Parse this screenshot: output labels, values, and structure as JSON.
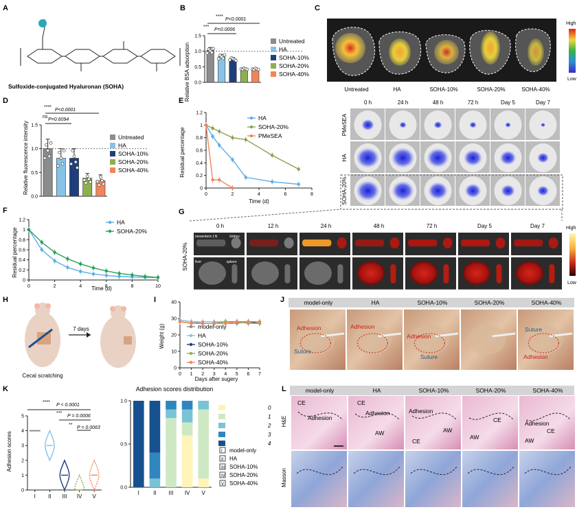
{
  "panels": {
    "A": {
      "letter": "A",
      "caption": "Sulfoxide-conjugated Hyaluronan (SOHA)",
      "colors": {
        "sulfoxide": "#2aa7b8",
        "bond": "#222222"
      }
    },
    "B": {
      "letter": "B",
      "ylabel": "Relative BSA adsorption",
      "sig1_stars": "****",
      "sig1_p": "P<0.0001",
      "sig2_stars": "***",
      "sig2_p": "P=0.0006"
    },
    "C": {
      "letter": "C",
      "scale_high": "High",
      "scale_low": "Low",
      "organs": [
        "Untreated",
        "HA",
        "SOHA-10%",
        "SOHA-20%",
        "SOHA-40%"
      ]
    },
    "D": {
      "letter": "D",
      "ylabel": "Relative fluorescence intensity",
      "sig1_stars": "****",
      "sig1_p": "P<0.0001",
      "sig2_stars": "ns",
      "sig2_p": "P=0.6094"
    },
    "E": {
      "letter": "E",
      "ylabel": "Residual percentage",
      "xlabel": "Time (d)"
    },
    "F": {
      "letter": "F",
      "ylabel": "Residual percentage",
      "xlabel": "Time (d)"
    },
    "mice": {
      "timepoints": [
        "0 h",
        "24 h",
        "48 h",
        "72 h",
        "Day 5",
        "Day 7"
      ],
      "rows": [
        "PMeSEA",
        "HA",
        "SOHA-20%"
      ]
    },
    "G": {
      "letter": "G",
      "timepoints": [
        "0 h",
        "12 h",
        "24 h",
        "48 h",
        "72 h",
        "Day 5",
        "Day 7"
      ],
      "row_label": "SOHA-20%",
      "organ_labels": [
        "mesenteric LN",
        "kidney",
        "liver",
        "spleen"
      ],
      "scale_high": "High",
      "scale_low": "Low"
    },
    "H": {
      "letter": "H",
      "step": "7 days",
      "caption": "Cecal scratching"
    },
    "I": {
      "letter": "I",
      "ylabel": "Weight (g)",
      "xlabel": "Days after sugery"
    },
    "J": {
      "letter": "J",
      "groups": [
        "model-only",
        "HA",
        "SOHA-10%",
        "SOHA-20%",
        "SOHA-40%"
      ],
      "tags": {
        "adhesion": "Adhesion",
        "suture": "Suture"
      }
    },
    "K": {
      "letter": "K",
      "ylabel": "Adhesion scores",
      "sig1_stars": "****",
      "sig1_p": "P < 0.0001",
      "sig2_stars": "***",
      "sig2_p": "P = 0.0006",
      "sig3_stars": "**",
      "sig3_p": "P = 0.0063",
      "dist_title": "Adhesion scores distribution",
      "roman": [
        "I",
        "II",
        "III",
        "IV",
        "V"
      ],
      "score_legend": [
        "0",
        "1",
        "2",
        "3",
        "4"
      ],
      "group_legend": [
        {
          "sym": "I",
          "name": "model-only"
        },
        {
          "sym": "II",
          "name": "HA"
        },
        {
          "sym": "III",
          "name": "SOHA-10%"
        },
        {
          "sym": "IV",
          "name": "SOHA-20%"
        },
        {
          "sym": "V",
          "name": "SOHA-40%"
        }
      ]
    },
    "L": {
      "letter": "L",
      "groups": [
        "model-only",
        "HA",
        "SOHA-10%",
        "SOHA-20%",
        "SOHA-40%"
      ],
      "rows": [
        "H&E",
        "Masson"
      ],
      "tags": {
        "ce": "CE",
        "aw": "AW",
        "adhesion": "Adhesion"
      }
    }
  },
  "chart_data": [
    {
      "id": "B",
      "type": "bar",
      "categories": [
        "Untreated",
        "HA",
        "SOHA-10%",
        "SOHA-20%",
        "SOHA-40%"
      ],
      "values": [
        1.03,
        0.82,
        0.75,
        0.44,
        0.43
      ],
      "errors": [
        0.09,
        0.08,
        0.05,
        0.03,
        0.03
      ],
      "colors": [
        "#8c8c8c",
        "#86c3e6",
        "#1e3f7a",
        "#8db04e",
        "#f2845b"
      ],
      "ylim": [
        0,
        1.5
      ],
      "yticks": [
        0,
        0.5,
        1.0,
        1.5
      ],
      "ylabel": "Relative BSA adsorption",
      "legend": [
        "Untreated",
        "HA",
        "SOHA-10%",
        "SOHA-20%",
        "SOHA-40%"
      ]
    },
    {
      "id": "D",
      "type": "bar",
      "categories": [
        "Untreated",
        "HA",
        "SOHA-10%",
        "SOHA-20%",
        "SOHA-40%"
      ],
      "values": [
        1.0,
        0.8,
        0.8,
        0.38,
        0.33
      ],
      "errors": [
        0.2,
        0.2,
        0.2,
        0.1,
        0.12
      ],
      "colors": [
        "#8c8c8c",
        "#86c3e6",
        "#1e3f7a",
        "#8db04e",
        "#f2845b"
      ],
      "ylim": [
        0,
        1.5
      ],
      "yticks": [
        0,
        0.5,
        1.0,
        1.5
      ],
      "ylabel": "Relative fluorescence intensity",
      "legend": [
        "Untreated",
        "HA",
        "SOHA-10%",
        "SOHA-20%",
        "SOHA-40%"
      ]
    },
    {
      "id": "E",
      "type": "line",
      "x": [
        0,
        0.5,
        1,
        2,
        3,
        5,
        7
      ],
      "series": [
        {
          "name": "HA",
          "color": "#5aaee8",
          "values": [
            1.0,
            0.82,
            0.68,
            0.45,
            0.17,
            0.1,
            0.06
          ]
        },
        {
          "name": "SOHA-20%",
          "color": "#8aa153",
          "values": [
            1.0,
            0.95,
            0.9,
            0.8,
            0.77,
            0.52,
            0.3
          ]
        },
        {
          "name": "PMeSEA",
          "color": "#f2845b",
          "x": [
            0,
            0.5,
            1,
            2
          ],
          "values": [
            1.0,
            0.13,
            0.13,
            0.0
          ]
        }
      ],
      "xlim": [
        0,
        8
      ],
      "ylim": [
        0,
        1.2
      ],
      "xticks": [
        0,
        2,
        4,
        6,
        8
      ],
      "yticks": [
        0,
        0.2,
        0.4,
        0.6,
        0.8,
        1.0,
        1.2
      ],
      "xlabel": "Time (d)",
      "ylabel": "Residual percentage"
    },
    {
      "id": "F",
      "type": "line",
      "x": [
        0,
        1,
        2,
        3,
        4,
        5,
        6,
        7,
        8,
        9,
        10
      ],
      "series": [
        {
          "name": "HA",
          "color": "#5aaee8",
          "values": [
            1.0,
            0.6,
            0.38,
            0.25,
            0.17,
            0.12,
            0.09,
            0.07,
            0.06,
            0.05,
            0.05
          ]
        },
        {
          "name": "SOHA-20%",
          "color": "#27a05a",
          "values": [
            1.0,
            0.75,
            0.55,
            0.42,
            0.32,
            0.24,
            0.18,
            0.13,
            0.1,
            0.07,
            0.05
          ]
        }
      ],
      "xlim": [
        0,
        10
      ],
      "ylim": [
        0,
        1.2
      ],
      "xticks": [
        0,
        2,
        4,
        6,
        8,
        10
      ],
      "yticks": [
        0,
        0.2,
        0.4,
        0.6,
        0.8,
        1.0,
        1.2
      ],
      "xlabel": "Time (d)",
      "ylabel": "Residual percentage"
    },
    {
      "id": "I",
      "type": "line",
      "x": [
        0,
        1,
        2,
        3,
        4,
        5,
        6,
        7
      ],
      "series": [
        {
          "name": "model-only",
          "color": "#8c8c8c",
          "values": [
            29,
            28,
            27,
            27,
            27,
            27,
            28,
            28
          ]
        },
        {
          "name": "HA",
          "color": "#86c3e6",
          "values": [
            29,
            28,
            28,
            28,
            28,
            28,
            28,
            28
          ]
        },
        {
          "name": "SOHA-10%",
          "color": "#1e3f7a",
          "values": [
            28,
            27,
            27,
            27,
            28,
            28,
            28,
            27
          ]
        },
        {
          "name": "SOHA-20%",
          "color": "#8db04e",
          "values": [
            28,
            27,
            27,
            27,
            28,
            28,
            27,
            27
          ]
        },
        {
          "name": "SOHA-40%",
          "color": "#f2845b",
          "values": [
            28,
            27,
            27,
            27,
            27,
            28,
            28,
            28
          ]
        }
      ],
      "xlim": [
        0,
        7
      ],
      "ylim": [
        0,
        40
      ],
      "xticks": [
        0,
        1,
        2,
        3,
        4,
        5,
        6,
        7
      ],
      "yticks": [
        0,
        10,
        20,
        30,
        40
      ],
      "xlabel": "Days after sugery",
      "ylabel": "Weight (g)"
    },
    {
      "id": "K-violin",
      "type": "violin",
      "categories": [
        "I",
        "II",
        "III",
        "IV",
        "V"
      ],
      "medians": [
        4,
        3,
        1,
        0,
        1
      ],
      "colors": [
        "#8c8c8c",
        "#86c3e6",
        "#1e3f7a",
        "#8db04e",
        "#f2845b"
      ],
      "ylim": [
        0,
        5
      ],
      "yticks": [
        0,
        1,
        2,
        3,
        4,
        5
      ],
      "ylabel": "Adhesion scores"
    },
    {
      "id": "K-stack",
      "type": "bar",
      "stacked": true,
      "categories": [
        "I",
        "II",
        "III",
        "IV",
        "V"
      ],
      "series": [
        {
          "name": "0",
          "color": "#fff3b8",
          "values": [
            0,
            0,
            0,
            0.6,
            0.1
          ]
        },
        {
          "name": "1",
          "color": "#cfe8c4",
          "values": [
            0,
            0,
            0.8,
            0.15,
            0.8
          ]
        },
        {
          "name": "2",
          "color": "#79c3d6",
          "values": [
            0,
            0.1,
            0.1,
            0.15,
            0.1
          ]
        },
        {
          "name": "3",
          "color": "#2f86be",
          "values": [
            0,
            0.3,
            0.1,
            0.1,
            0
          ]
        },
        {
          "name": "4",
          "color": "#17508f",
          "values": [
            1.0,
            0.6,
            0,
            0,
            0
          ]
        }
      ],
      "ylim": [
        0,
        1.0
      ],
      "yticks": [
        0,
        0.5,
        1.0
      ],
      "title": "Adhesion scores distribution"
    }
  ]
}
